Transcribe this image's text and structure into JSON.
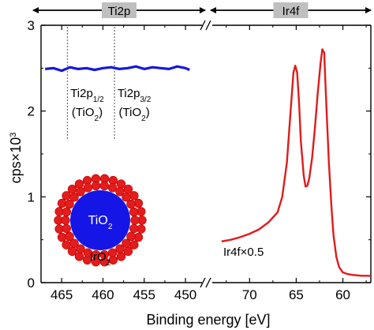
{
  "chart_data": {
    "type": "line",
    "xlabel": "Binding energy [eV]",
    "ylabel": "cps×10",
    "ylabel_sup": "3",
    "ylim": [
      0,
      3
    ],
    "yticks": [
      "0",
      "1",
      "2",
      "3"
    ],
    "x_axis_break": "//",
    "panels": [
      {
        "name": "Ti2p",
        "xlim": [
          467.5,
          448
        ],
        "xticks": [
          "465",
          "460",
          "455",
          "450"
        ],
        "tick_values": [
          465,
          460,
          455,
          450
        ],
        "series": {
          "color": "#1616e0",
          "x": [
            467,
            466,
            465,
            464,
            463,
            462,
            461,
            460,
            459,
            458,
            457,
            456,
            455,
            454,
            453,
            452,
            451,
            450,
            449.5
          ],
          "y": [
            2.49,
            2.5,
            2.47,
            2.51,
            2.49,
            2.5,
            2.48,
            2.5,
            2.51,
            2.49,
            2.5,
            2.52,
            2.49,
            2.51,
            2.5,
            2.49,
            2.52,
            2.5,
            2.48
          ]
        },
        "markers": [
          {
            "x": 464.3,
            "label": "Ti2p",
            "sub": "1/2",
            "line2": "(TiO",
            "line2_sub": "2",
            "line2_end": ")"
          },
          {
            "x": 458.6,
            "label": "Ti2p",
            "sub": "3/2",
            "line2": "(TiO",
            "line2_sub": "2",
            "line2_end": ")"
          }
        ]
      },
      {
        "name": "Ir4f",
        "xlim": [
          74,
          57
        ],
        "xticks": [
          "70",
          "65",
          "60"
        ],
        "tick_values": [
          70,
          65,
          60
        ],
        "annotation": "Ir4f×0.5",
        "series": {
          "color": "#e01b1b",
          "x": [
            73,
            72,
            71,
            70,
            69,
            68,
            67,
            66.5,
            66,
            65.6,
            65.3,
            65.1,
            64.9,
            64.7,
            64.5,
            64.2,
            64.0,
            63.8,
            63.6,
            63.3,
            63.0,
            62.7,
            62.4,
            62.2,
            62.0,
            61.9,
            61.7,
            61.5,
            61.2,
            61.0,
            60.7,
            60.4,
            60.0,
            59.5,
            59.0,
            58.0,
            57.0
          ],
          "y": [
            0.48,
            0.5,
            0.53,
            0.57,
            0.62,
            0.7,
            0.82,
            1.0,
            1.4,
            2.0,
            2.45,
            2.53,
            2.45,
            2.1,
            1.65,
            1.25,
            1.12,
            1.13,
            1.22,
            1.45,
            1.8,
            2.2,
            2.55,
            2.72,
            2.68,
            2.4,
            1.9,
            1.4,
            0.85,
            0.55,
            0.3,
            0.18,
            0.12,
            0.1,
            0.09,
            0.08,
            0.08
          ]
        }
      }
    ]
  },
  "inset": {
    "core_label": "TiO",
    "core_sub": "2",
    "shell_label": "IrO",
    "shell_sub": "2"
  },
  "colors": {
    "ti_series": "#1616e0",
    "ir_series": "#e01b1b",
    "core": "#1515e6",
    "shell": "#e51c1c",
    "region_box": "#bfbfbf"
  }
}
